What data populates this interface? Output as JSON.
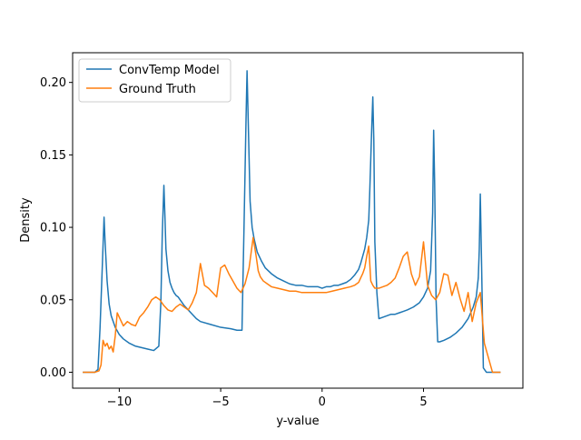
{
  "chart_data": {
    "type": "line",
    "title": "",
    "xlabel": "y-value",
    "ylabel": "Density",
    "xlim": [
      -12.3,
      9.9
    ],
    "ylim": [
      -0.011,
      0.2205
    ],
    "xticks": [
      -10,
      -5,
      0,
      5
    ],
    "yticks": [
      0.0,
      0.05,
      0.1,
      0.15,
      0.2
    ],
    "xtick_labels": [
      "−10",
      "−5",
      "0",
      "5"
    ],
    "ytick_labels": [
      "0.00",
      "0.05",
      "0.10",
      "0.15",
      "0.20"
    ],
    "grid": false,
    "legend_position": "upper-left",
    "series": [
      {
        "name": "ConvTemp Model",
        "color": "#1f77b4",
        "x": [
          -11.8,
          -11.6,
          -11.4,
          -11.2,
          -11.05,
          -10.95,
          -10.85,
          -10.75,
          -10.7,
          -10.6,
          -10.5,
          -10.4,
          -10.2,
          -10.0,
          -9.8,
          -9.5,
          -9.2,
          -8.9,
          -8.6,
          -8.3,
          -8.05,
          -7.95,
          -7.88,
          -7.8,
          -7.75,
          -7.7,
          -7.6,
          -7.5,
          -7.4,
          -7.3,
          -7.2,
          -7.1,
          -7.0,
          -6.9,
          -6.8,
          -6.6,
          -6.4,
          -6.2,
          -6.0,
          -5.5,
          -5.0,
          -4.5,
          -4.2,
          -3.95,
          -3.85,
          -3.75,
          -3.7,
          -3.62,
          -3.55,
          -3.45,
          -3.35,
          -3.2,
          -3.0,
          -2.8,
          -2.5,
          -2.2,
          -1.9,
          -1.6,
          -1.3,
          -1.0,
          -0.7,
          -0.4,
          -0.2,
          0.0,
          0.2,
          0.4,
          0.6,
          0.8,
          1.0,
          1.2,
          1.4,
          1.6,
          1.8,
          1.9,
          2.0,
          2.1,
          2.2,
          2.3,
          2.35,
          2.45,
          2.5,
          2.55,
          2.6,
          2.7,
          2.8,
          3.0,
          3.2,
          3.4,
          3.6,
          3.8,
          4.0,
          4.2,
          4.5,
          4.8,
          5.0,
          5.2,
          5.35,
          5.45,
          5.5,
          5.55,
          5.62,
          5.7,
          5.8,
          6.0,
          6.3,
          6.6,
          6.9,
          7.2,
          7.45,
          7.6,
          7.7,
          7.75,
          7.8,
          7.85,
          7.95,
          8.1,
          8.4,
          8.8
        ],
        "y": [
          0.0,
          0.0,
          0.0,
          0.0,
          0.002,
          0.03,
          0.068,
          0.107,
          0.09,
          0.063,
          0.047,
          0.039,
          0.031,
          0.026,
          0.023,
          0.02,
          0.018,
          0.017,
          0.016,
          0.015,
          0.018,
          0.048,
          0.095,
          0.129,
          0.108,
          0.085,
          0.07,
          0.062,
          0.058,
          0.055,
          0.053,
          0.052,
          0.05,
          0.048,
          0.046,
          0.043,
          0.04,
          0.037,
          0.035,
          0.033,
          0.031,
          0.03,
          0.029,
          0.029,
          0.1,
          0.175,
          0.208,
          0.16,
          0.118,
          0.1,
          0.092,
          0.083,
          0.077,
          0.072,
          0.068,
          0.065,
          0.063,
          0.061,
          0.06,
          0.06,
          0.059,
          0.059,
          0.059,
          0.058,
          0.059,
          0.059,
          0.06,
          0.06,
          0.061,
          0.062,
          0.064,
          0.067,
          0.071,
          0.075,
          0.08,
          0.085,
          0.093,
          0.105,
          0.125,
          0.17,
          0.19,
          0.16,
          0.09,
          0.055,
          0.037,
          0.038,
          0.039,
          0.04,
          0.04,
          0.041,
          0.042,
          0.043,
          0.045,
          0.048,
          0.052,
          0.058,
          0.07,
          0.11,
          0.167,
          0.13,
          0.05,
          0.021,
          0.021,
          0.022,
          0.024,
          0.027,
          0.031,
          0.037,
          0.045,
          0.052,
          0.065,
          0.085,
          0.123,
          0.085,
          0.003,
          0.0,
          0.0,
          0.0
        ]
      },
      {
        "name": "Ground Truth",
        "color": "#ff7f0e",
        "x": [
          -11.8,
          -11.6,
          -11.4,
          -11.2,
          -11.0,
          -10.9,
          -10.8,
          -10.7,
          -10.6,
          -10.5,
          -10.4,
          -10.3,
          -10.2,
          -10.1,
          -10.0,
          -9.8,
          -9.6,
          -9.4,
          -9.2,
          -9.0,
          -8.8,
          -8.6,
          -8.4,
          -8.2,
          -8.0,
          -7.8,
          -7.6,
          -7.4,
          -7.2,
          -7.0,
          -6.8,
          -6.6,
          -6.4,
          -6.2,
          -6.0,
          -5.8,
          -5.6,
          -5.4,
          -5.2,
          -5.0,
          -4.8,
          -4.6,
          -4.4,
          -4.2,
          -4.0,
          -3.8,
          -3.6,
          -3.4,
          -3.25,
          -3.15,
          -3.05,
          -2.9,
          -2.7,
          -2.5,
          -2.2,
          -1.9,
          -1.6,
          -1.3,
          -1.0,
          -0.7,
          -0.4,
          -0.1,
          0.2,
          0.5,
          0.8,
          1.1,
          1.4,
          1.6,
          1.8,
          1.9,
          2.0,
          2.1,
          2.2,
          2.3,
          2.4,
          2.5,
          2.6,
          2.8,
          3.0,
          3.2,
          3.4,
          3.6,
          3.8,
          4.0,
          4.2,
          4.4,
          4.6,
          4.8,
          5.0,
          5.2,
          5.4,
          5.6,
          5.8,
          6.0,
          6.2,
          6.4,
          6.6,
          6.8,
          7.0,
          7.2,
          7.4,
          7.6,
          7.8,
          8.0,
          8.4,
          8.8
        ],
        "y": [
          0.0,
          0.0,
          0.0,
          0.0,
          0.001,
          0.005,
          0.022,
          0.018,
          0.02,
          0.016,
          0.018,
          0.014,
          0.025,
          0.041,
          0.038,
          0.032,
          0.035,
          0.033,
          0.032,
          0.038,
          0.041,
          0.045,
          0.05,
          0.052,
          0.05,
          0.046,
          0.043,
          0.042,
          0.045,
          0.047,
          0.045,
          0.043,
          0.048,
          0.055,
          0.075,
          0.06,
          0.058,
          0.055,
          0.052,
          0.072,
          0.074,
          0.068,
          0.063,
          0.058,
          0.055,
          0.061,
          0.072,
          0.093,
          0.08,
          0.07,
          0.066,
          0.063,
          0.061,
          0.059,
          0.058,
          0.057,
          0.056,
          0.056,
          0.055,
          0.055,
          0.055,
          0.055,
          0.055,
          0.056,
          0.057,
          0.058,
          0.059,
          0.06,
          0.062,
          0.065,
          0.068,
          0.072,
          0.08,
          0.087,
          0.063,
          0.06,
          0.058,
          0.058,
          0.059,
          0.06,
          0.062,
          0.065,
          0.072,
          0.08,
          0.083,
          0.068,
          0.06,
          0.066,
          0.09,
          0.06,
          0.053,
          0.05,
          0.055,
          0.068,
          0.067,
          0.053,
          0.062,
          0.051,
          0.042,
          0.055,
          0.035,
          0.048,
          0.055,
          0.02,
          0.0,
          0.0
        ]
      }
    ]
  }
}
